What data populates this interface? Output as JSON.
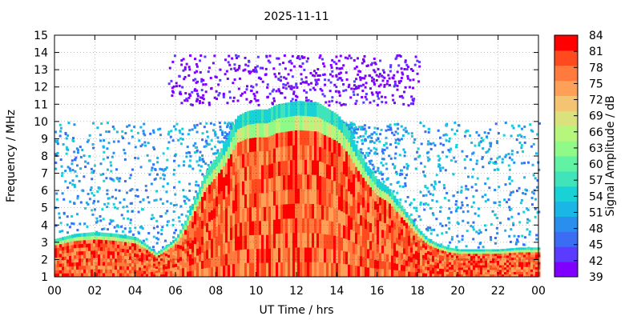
{
  "chart_data": {
    "type": "heatmap",
    "title": "2025-11-11",
    "xlabel": "UT Time / hrs",
    "ylabel": "Frequency / MHz",
    "colorbar_label": "Signal Amplitude / dB",
    "xlim": [
      0,
      24
    ],
    "ylim": [
      1,
      15
    ],
    "x_ticks": [
      "00",
      "02",
      "04",
      "06",
      "08",
      "10",
      "12",
      "14",
      "16",
      "18",
      "20",
      "22",
      "00"
    ],
    "y_ticks": [
      "1",
      "2",
      "3",
      "4",
      "5",
      "6",
      "7",
      "8",
      "9",
      "10",
      "11",
      "12",
      "13",
      "14",
      "15"
    ],
    "colorbar": {
      "range": [
        39,
        84
      ],
      "ticks": [
        "84",
        "81",
        "78",
        "75",
        "72",
        "69",
        "66",
        "63",
        "60",
        "57",
        "54",
        "51",
        "48",
        "45",
        "42",
        "39"
      ],
      "colors": [
        "#7f00ff",
        "#5a3bff",
        "#3a6cf4",
        "#2a8eef",
        "#1ab6e6",
        "#19d2d6",
        "#3fe4bb",
        "#62f2a4",
        "#8ffa88",
        "#b7f67c",
        "#d9e27c",
        "#f4c472",
        "#ffa058",
        "#ff7a3c",
        "#ff4a20",
        "#ff0000"
      ]
    },
    "grid": true,
    "band_upper_edge_mhz": {
      "time_hr": [
        0,
        1,
        2,
        3,
        4,
        4.5,
        5,
        5.5,
        6,
        6.5,
        7,
        7.5,
        8,
        8.5,
        9,
        9.5,
        10,
        10.5,
        11,
        12,
        13,
        14,
        14.5,
        15,
        15.5,
        16,
        16.5,
        17,
        17.5,
        18,
        18.5,
        19,
        19.5,
        20,
        21,
        22,
        23,
        24
      ],
      "freq_mhz": [
        3.2,
        3.5,
        3.6,
        3.5,
        3.3,
        2.9,
        2.4,
        2.8,
        3.3,
        4.4,
        5.8,
        7.2,
        8.0,
        9.0,
        10.3,
        10.6,
        10.7,
        10.7,
        11.0,
        11.2,
        11.1,
        10.4,
        9.6,
        8.4,
        7.4,
        6.6,
        6.2,
        5.4,
        4.6,
        3.8,
        3.2,
        2.9,
        2.7,
        2.6,
        2.6,
        2.6,
        2.7,
        2.7
      ]
    },
    "sparse_upper_band_mhz": {
      "time_hr": [
        5.6,
        18.2
      ],
      "freq_mhz": [
        11.0,
        13.9
      ]
    },
    "background_noise_top_mhz": 10.0
  }
}
